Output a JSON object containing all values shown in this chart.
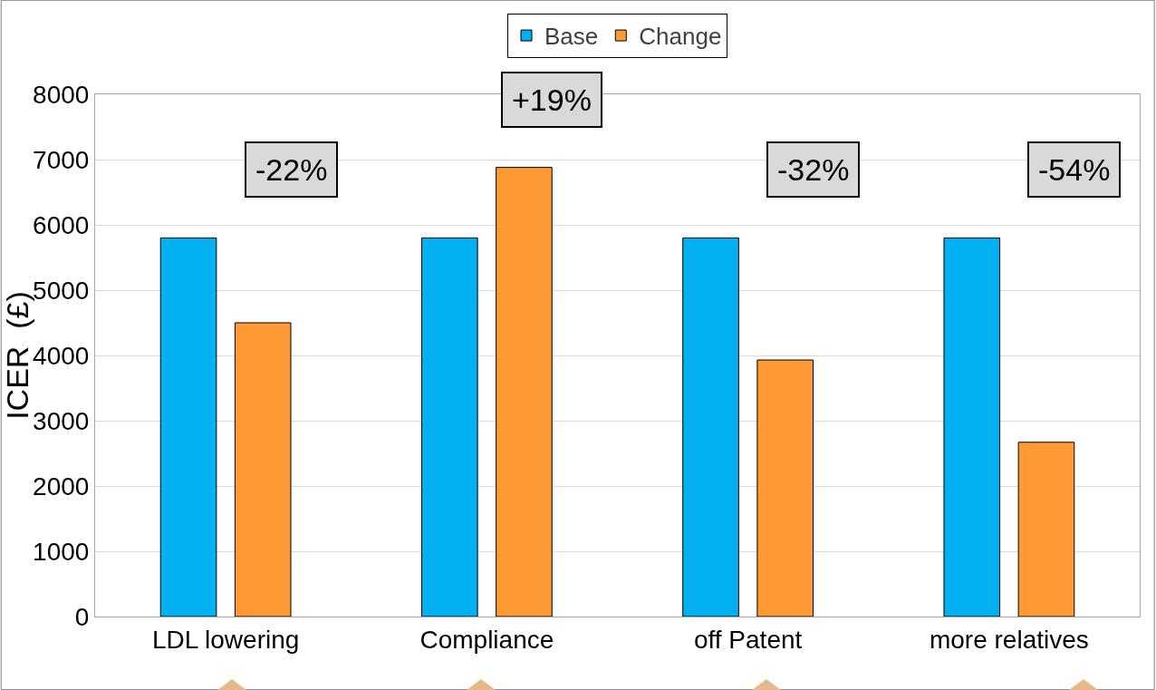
{
  "chart_data": {
    "type": "bar",
    "ylabel": "ICER  (£)",
    "categories": [
      "LDL lowering",
      "Compliance",
      "off Patent",
      "more relatives"
    ],
    "series": [
      {
        "name": "Base",
        "color": "#00b0f0",
        "values": [
          5800,
          5800,
          5800,
          5800
        ]
      },
      {
        "name": "Change",
        "color": "#ff9933",
        "values": [
          4500,
          6880,
          3930,
          2670
        ]
      }
    ],
    "ylim": [
      0,
      8000
    ],
    "yticks": [
      0,
      1000,
      2000,
      3000,
      4000,
      5000,
      6000,
      7000,
      8000
    ],
    "grid": "y",
    "legend": "top",
    "annotations": [
      "-22%",
      "+19%",
      "-32%",
      "-54%"
    ]
  }
}
